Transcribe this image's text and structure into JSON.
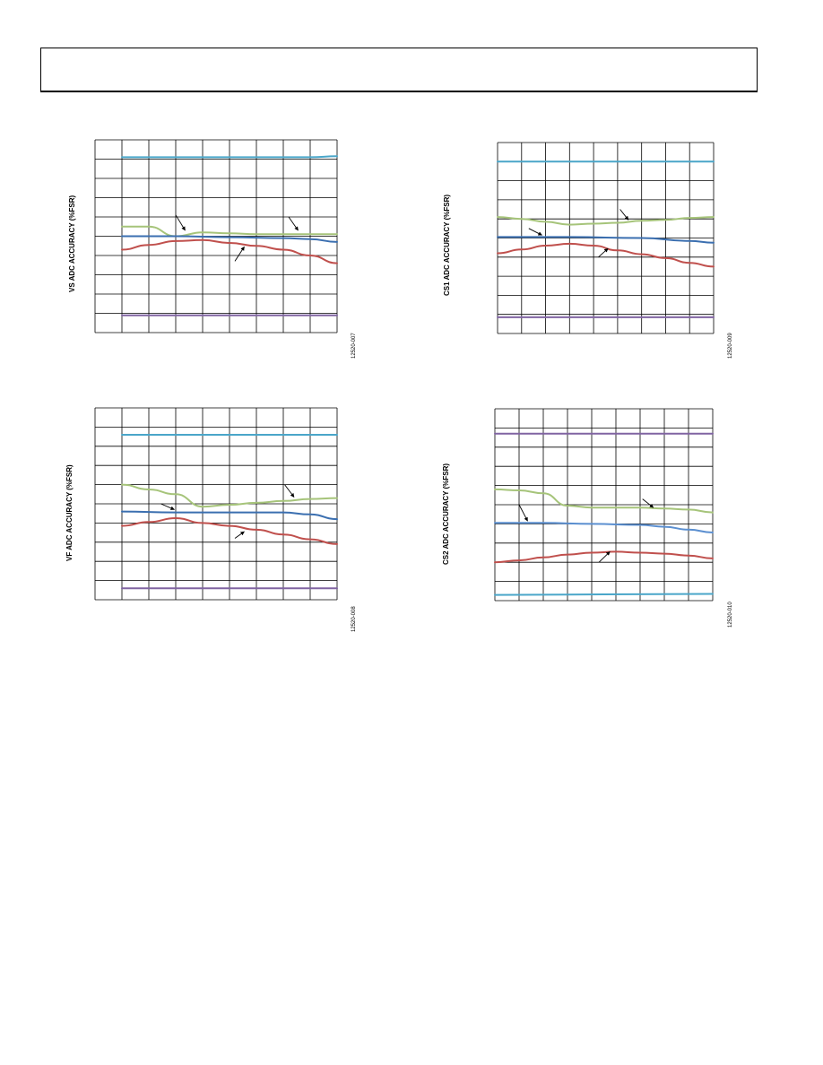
{
  "colors": {
    "grid": "#000000",
    "cyan": "#4aa6c9",
    "green": "#a6c47a",
    "blue": "#3b6fb0",
    "blue_light": "#5b8fd0",
    "red": "#c0504d",
    "purple": "#8064a2",
    "arrow": "#000000"
  },
  "chart_data": [
    {
      "type": "line",
      "ylabel": "VS ADC ACCURACY (%FSR)",
      "figure_id": "12520-007",
      "grid": true,
      "xlim": [
        0,
        9
      ],
      "ylim": [
        0,
        10
      ],
      "x_cols": 9,
      "y_rows": 10,
      "series": [
        {
          "color": "cyan",
          "points": [
            [
              1,
              9.1
            ],
            [
              4,
              9.1
            ],
            [
              7,
              9.1
            ],
            [
              8,
              9.1
            ],
            [
              9,
              9.15
            ]
          ]
        },
        {
          "color": "green",
          "points": [
            [
              1,
              5.5
            ],
            [
              2,
              5.5
            ],
            [
              3,
              5.0
            ],
            [
              4,
              5.2
            ],
            [
              5,
              5.15
            ],
            [
              6,
              5.1
            ],
            [
              7,
              5.1
            ],
            [
              8,
              5.1
            ],
            [
              9,
              5.1
            ]
          ]
        },
        {
          "color": "blue",
          "points": [
            [
              1,
              5.0
            ],
            [
              3,
              5.0
            ],
            [
              5,
              4.95
            ],
            [
              7,
              4.9
            ],
            [
              8,
              4.85
            ],
            [
              9,
              4.7
            ]
          ]
        },
        {
          "color": "red",
          "points": [
            [
              1,
              4.3
            ],
            [
              2,
              4.55
            ],
            [
              3,
              4.75
            ],
            [
              4,
              4.8
            ],
            [
              5,
              4.65
            ],
            [
              6,
              4.5
            ],
            [
              7,
              4.3
            ],
            [
              8,
              4.0
            ],
            [
              9,
              3.6
            ]
          ]
        },
        {
          "color": "purple",
          "points": [
            [
              1,
              0.9
            ],
            [
              9,
              0.9
            ]
          ]
        }
      ],
      "arrows": [
        {
          "from": [
            3.0,
            6.1
          ],
          "to": [
            3.35,
            5.3
          ]
        },
        {
          "from": [
            7.2,
            6.0
          ],
          "to": [
            7.55,
            5.3
          ]
        },
        {
          "from": [
            5.2,
            3.7
          ],
          "to": [
            5.55,
            4.45
          ]
        }
      ]
    },
    {
      "type": "line",
      "ylabel": "CS1 ADC ACCURACY (%FSR)",
      "figure_id": "12520-009",
      "grid": true,
      "xlim": [
        0,
        9
      ],
      "ylim": [
        0,
        10
      ],
      "x_cols": 9,
      "y_rows": 10,
      "series": [
        {
          "color": "cyan",
          "points": [
            [
              0,
              9.0
            ],
            [
              9,
              9.0
            ]
          ]
        },
        {
          "color": "green",
          "points": [
            [
              0,
              6.1
            ],
            [
              1,
              6.0
            ],
            [
              2,
              5.85
            ],
            [
              3,
              5.7
            ],
            [
              4,
              5.75
            ],
            [
              5,
              5.8
            ],
            [
              6,
              5.9
            ],
            [
              7,
              5.95
            ],
            [
              8,
              6.05
            ],
            [
              9,
              6.1
            ]
          ]
        },
        {
          "color": "blue",
          "points": [
            [
              0,
              5.05
            ],
            [
              3,
              5.05
            ],
            [
              6,
              5.0
            ],
            [
              8,
              4.85
            ],
            [
              9,
              4.75
            ]
          ]
        },
        {
          "color": "red",
          "points": [
            [
              0,
              4.2
            ],
            [
              1,
              4.4
            ],
            [
              2,
              4.6
            ],
            [
              3,
              4.7
            ],
            [
              4,
              4.6
            ],
            [
              5,
              4.35
            ],
            [
              6,
              4.15
            ],
            [
              7,
              3.95
            ],
            [
              8,
              3.7
            ],
            [
              9,
              3.5
            ]
          ]
        },
        {
          "color": "purple",
          "points": [
            [
              0,
              0.85
            ],
            [
              9,
              0.85
            ]
          ]
        }
      ],
      "arrows": [
        {
          "from": [
            1.3,
            5.5
          ],
          "to": [
            1.85,
            5.15
          ]
        },
        {
          "from": [
            5.1,
            6.5
          ],
          "to": [
            5.45,
            5.95
          ]
        },
        {
          "from": [
            4.2,
            4.0
          ],
          "to": [
            4.6,
            4.45
          ]
        }
      ]
    },
    {
      "type": "line",
      "ylabel": "VF ADC ACCURACY (%FSR)",
      "figure_id": "12520-008",
      "grid": true,
      "xlim": [
        0,
        9
      ],
      "ylim": [
        0,
        10
      ],
      "x_cols": 9,
      "y_rows": 10,
      "series": [
        {
          "color": "cyan",
          "points": [
            [
              1,
              8.6
            ],
            [
              9,
              8.6
            ]
          ]
        },
        {
          "color": "green",
          "points": [
            [
              1,
              6.0
            ],
            [
              2,
              5.75
            ],
            [
              3,
              5.5
            ],
            [
              4,
              4.85
            ],
            [
              5,
              4.95
            ],
            [
              6,
              5.05
            ],
            [
              7,
              5.15
            ],
            [
              8,
              5.25
            ],
            [
              9,
              5.3
            ]
          ]
        },
        {
          "color": "blue",
          "points": [
            [
              1,
              4.6
            ],
            [
              3,
              4.55
            ],
            [
              5,
              4.55
            ],
            [
              7,
              4.55
            ],
            [
              8,
              4.45
            ],
            [
              9,
              4.2
            ]
          ]
        },
        {
          "color": "red",
          "points": [
            [
              1,
              3.85
            ],
            [
              2,
              4.05
            ],
            [
              3,
              4.25
            ],
            [
              4,
              4.0
            ],
            [
              5,
              3.85
            ],
            [
              6,
              3.65
            ],
            [
              7,
              3.4
            ],
            [
              8,
              3.15
            ],
            [
              9,
              2.9
            ]
          ]
        },
        {
          "color": "purple",
          "points": [
            [
              1,
              0.6
            ],
            [
              9,
              0.6
            ]
          ]
        }
      ],
      "arrows": [
        {
          "from": [
            2.45,
            5.0
          ],
          "to": [
            2.95,
            4.7
          ]
        },
        {
          "from": [
            7.05,
            6.0
          ],
          "to": [
            7.4,
            5.35
          ]
        },
        {
          "from": [
            5.2,
            3.2
          ],
          "to": [
            5.55,
            3.55
          ]
        }
      ]
    },
    {
      "type": "line",
      "ylabel": "CS2 ADC ACCURACY (%FSR)",
      "figure_id": "12520-010",
      "grid": true,
      "xlim": [
        0,
        9
      ],
      "ylim": [
        0,
        10
      ],
      "x_cols": 9,
      "y_rows": 10,
      "series": [
        {
          "color": "purple",
          "points": [
            [
              0,
              8.7
            ],
            [
              9,
              8.7
            ]
          ]
        },
        {
          "color": "green",
          "points": [
            [
              0,
              5.8
            ],
            [
              1,
              5.75
            ],
            [
              2,
              5.6
            ],
            [
              3,
              4.95
            ],
            [
              4,
              4.85
            ],
            [
              5,
              4.85
            ],
            [
              6,
              4.85
            ],
            [
              7,
              4.8
            ],
            [
              8,
              4.75
            ],
            [
              9,
              4.6
            ]
          ]
        },
        {
          "color": "blue_light",
          "points": [
            [
              0,
              4.05
            ],
            [
              2,
              4.05
            ],
            [
              4,
              4.0
            ],
            [
              6,
              3.95
            ],
            [
              7,
              3.85
            ],
            [
              8,
              3.7
            ],
            [
              9,
              3.55
            ]
          ]
        },
        {
          "color": "red",
          "points": [
            [
              0,
              2.0
            ],
            [
              1,
              2.1
            ],
            [
              2,
              2.25
            ],
            [
              3,
              2.4
            ],
            [
              4,
              2.5
            ],
            [
              5,
              2.55
            ],
            [
              6,
              2.5
            ],
            [
              7,
              2.45
            ],
            [
              8,
              2.35
            ],
            [
              9,
              2.2
            ]
          ]
        },
        {
          "color": "cyan",
          "points": [
            [
              0,
              0.3
            ],
            [
              9,
              0.35
            ]
          ]
        }
      ],
      "arrows": [
        {
          "from": [
            1.0,
            5.0
          ],
          "to": [
            1.35,
            4.15
          ]
        },
        {
          "from": [
            6.1,
            5.3
          ],
          "to": [
            6.55,
            4.85
          ]
        },
        {
          "from": [
            4.3,
            2.0
          ],
          "to": [
            4.75,
            2.55
          ]
        }
      ]
    }
  ]
}
